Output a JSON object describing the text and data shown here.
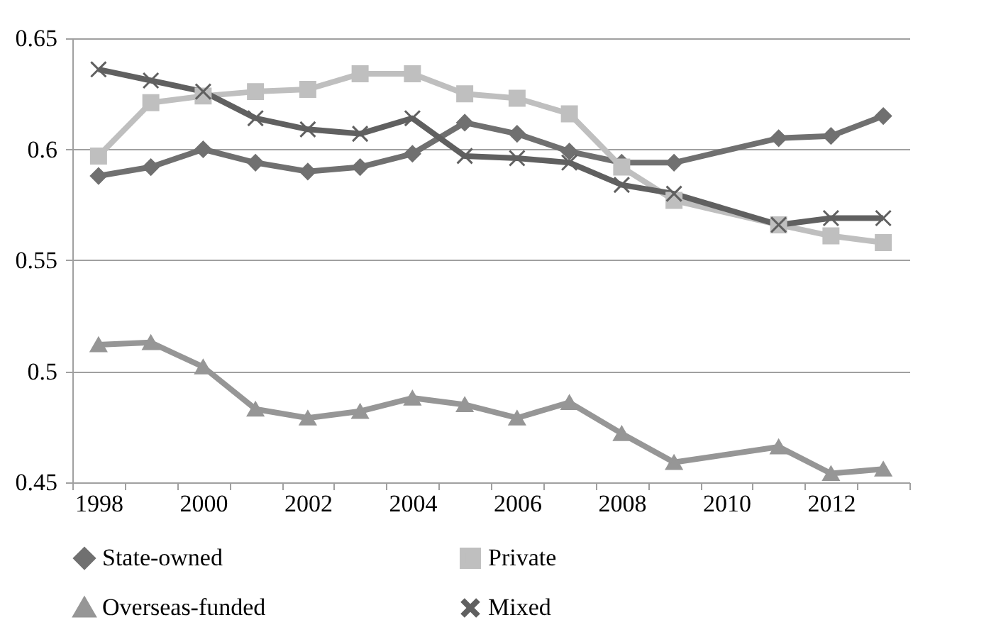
{
  "chart_data": {
    "type": "line",
    "categories": [
      "1998",
      null,
      "2000",
      null,
      "2002",
      null,
      "2004",
      null,
      "2006",
      null,
      "2008",
      null,
      "2010",
      null,
      "2012",
      null
    ],
    "series": [
      {
        "name": "State-owned",
        "color": "#707070",
        "marker": "diamond",
        "values": [
          0.588,
          0.592,
          0.6,
          0.594,
          0.59,
          0.592,
          0.598,
          0.612,
          0.607,
          0.599,
          0.594,
          0.594,
          null,
          0.605,
          0.606,
          0.615
        ]
      },
      {
        "name": "Private",
        "color": "#bfbfbf",
        "marker": "square",
        "values": [
          0.597,
          0.621,
          0.624,
          0.626,
          0.627,
          0.634,
          0.634,
          0.625,
          0.623,
          0.616,
          0.592,
          0.577,
          null,
          0.566,
          0.561,
          0.558
        ]
      },
      {
        "name": "Overseas-funded",
        "color": "#969696",
        "marker": "triangle",
        "values": [
          0.512,
          0.513,
          0.502,
          0.483,
          0.479,
          0.482,
          0.488,
          0.485,
          0.479,
          0.486,
          0.472,
          0.459,
          null,
          0.466,
          0.454,
          0.456
        ]
      },
      {
        "name": "Mixed",
        "color": "#606060",
        "marker": "cross",
        "values": [
          0.636,
          0.631,
          0.626,
          0.614,
          0.609,
          0.607,
          0.614,
          0.597,
          0.596,
          0.594,
          0.584,
          0.58,
          null,
          0.566,
          0.569,
          0.569
        ]
      }
    ],
    "ylim": [
      0.45,
      0.65
    ],
    "yticks": [
      0.45,
      0.5,
      0.55,
      0.6,
      0.65
    ],
    "grid": "y",
    "legend": "bottom",
    "line_style": "solid"
  }
}
